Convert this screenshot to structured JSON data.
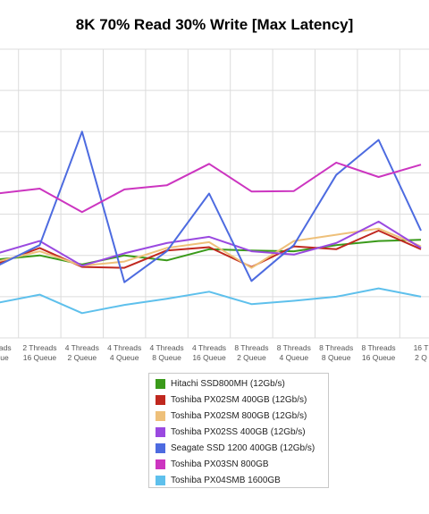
{
  "chart_data": {
    "type": "line",
    "title": "8K 70% Read 30% Write [Max Latency]",
    "xlabel": "",
    "ylabel": "",
    "grid": true,
    "legend_position": "bottom",
    "categories": [
      [
        "Threads",
        "Queue"
      ],
      [
        "2 Threads",
        "16 Queue"
      ],
      [
        "4 Threads",
        "2 Queue"
      ],
      [
        "4 Threads",
        "4 Queue"
      ],
      [
        "4 Threads",
        "8 Queue"
      ],
      [
        "4 Threads",
        "16 Queue"
      ],
      [
        "8 Threads",
        "2 Queue"
      ],
      [
        "8 Threads",
        "4 Queue"
      ],
      [
        "8 Threads",
        "8 Queue"
      ],
      [
        "8 Threads",
        "16 Queue"
      ],
      [
        "16 T",
        "2 Q"
      ]
    ],
    "ylim": [
      0,
      7
    ],
    "series": [
      {
        "name": "Hitachi SSD800MH (12Gb/s)",
        "color": "#3a9a1a",
        "values": [
          1.9,
          2.0,
          1.78,
          2.0,
          1.88,
          2.15,
          2.12,
          2.1,
          2.25,
          2.35,
          2.38
        ]
      },
      {
        "name": "Toshiba PX02SM 400GB (12Gb/s)",
        "color": "#c0281f",
        "values": [
          1.8,
          2.18,
          1.72,
          1.7,
          2.12,
          2.2,
          1.72,
          2.22,
          2.15,
          2.6,
          2.15
        ]
      },
      {
        "name": "Toshiba PX02SM 800GB (12Gb/s)",
        "color": "#eec07a",
        "values": [
          1.85,
          2.1,
          1.75,
          1.85,
          2.18,
          2.32,
          1.7,
          2.35,
          2.5,
          2.65,
          2.22
        ]
      },
      {
        "name": "Toshiba PX02SS 400GB (12Gb/s)",
        "color": "#9a49e0",
        "values": [
          2.05,
          2.35,
          1.75,
          2.05,
          2.3,
          2.45,
          2.1,
          2.02,
          2.3,
          2.82,
          2.18
        ]
      },
      {
        "name": "Seagate SSD 1200 400GB (12Gb/s)",
        "color": "#4d6be0",
        "values": [
          1.75,
          2.25,
          5.0,
          1.35,
          2.1,
          3.5,
          1.38,
          2.25,
          3.95,
          4.8,
          2.6
        ]
      },
      {
        "name": "Toshiba PX03SN 800GB",
        "color": "#cc35c0",
        "values": [
          3.5,
          3.62,
          3.05,
          3.6,
          3.7,
          4.22,
          3.55,
          3.56,
          4.25,
          3.9,
          4.2
        ]
      },
      {
        "name": "Toshiba PX04SMB 1600GB",
        "color": "#5ec0ec",
        "values": [
          0.85,
          1.05,
          0.6,
          0.8,
          0.95,
          1.12,
          0.82,
          0.9,
          1.0,
          1.2,
          1.0
        ]
      }
    ]
  }
}
